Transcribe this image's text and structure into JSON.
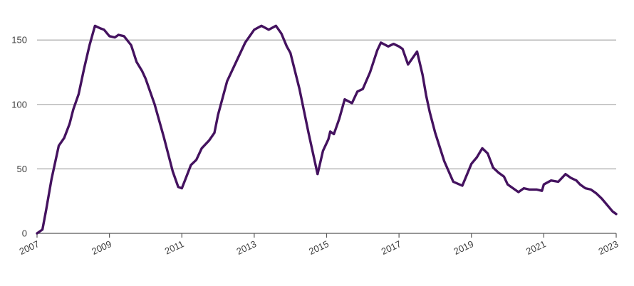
{
  "chart_data": {
    "type": "line",
    "title": "",
    "xlabel": "",
    "ylabel": "",
    "xlim": [
      2007,
      2023
    ],
    "ylim": [
      0,
      170
    ],
    "x_ticks": [
      "2007",
      "2009",
      "2011",
      "2013",
      "2015",
      "2017",
      "2019",
      "2021",
      "2023"
    ],
    "y_ticks": [
      "0",
      "50",
      "100",
      "150"
    ],
    "grid": "horizontal",
    "legend": "none",
    "line_color": "#44125f",
    "series": [
      {
        "x": [
          2007.0,
          2007.15,
          2007.25,
          2007.4,
          2007.5,
          2007.6,
          2007.75,
          2007.9,
          2008.0,
          2008.15,
          2008.3,
          2008.45,
          2008.6,
          2008.75,
          2008.85,
          2009.0,
          2009.15,
          2009.25,
          2009.4,
          2009.6,
          2009.75,
          2009.9,
          2010.0,
          2010.25,
          2010.5,
          2010.75,
          2010.9,
          2011.0,
          2011.1,
          2011.25,
          2011.4,
          2011.55,
          2011.75,
          2011.9,
          2012.0,
          2012.25,
          2012.5,
          2012.75,
          2013.0,
          2013.2,
          2013.4,
          2013.6,
          2013.75,
          2013.9,
          2014.0,
          2014.25,
          2014.5,
          2014.75,
          2014.9,
          2015.05,
          2015.1,
          2015.2,
          2015.35,
          2015.5,
          2015.7,
          2015.85,
          2016.0,
          2016.2,
          2016.4,
          2016.5,
          2016.7,
          2016.85,
          2017.0,
          2017.1,
          2017.25,
          2017.5,
          2017.65,
          2017.75,
          2017.85,
          2018.0,
          2018.25,
          2018.5,
          2018.75,
          2019.0,
          2019.15,
          2019.3,
          2019.45,
          2019.6,
          2019.75,
          2019.9,
          2020.0,
          2020.15,
          2020.3,
          2020.45,
          2020.6,
          2020.8,
          2020.95,
          2021.0,
          2021.2,
          2021.4,
          2021.6,
          2021.75,
          2021.9,
          2022.0,
          2022.15,
          2022.3,
          2022.45,
          2022.6,
          2022.75,
          2022.9,
          2023.0
        ],
        "values": [
          0,
          3,
          18,
          42,
          55,
          68,
          74,
          85,
          96,
          108,
          128,
          146,
          161,
          159,
          158,
          153,
          152,
          154,
          153,
          146,
          133,
          126,
          120,
          100,
          75,
          48,
          36,
          35,
          42,
          53,
          57,
          66,
          72,
          78,
          92,
          118,
          133,
          148,
          158,
          161,
          158,
          161,
          155,
          145,
          140,
          112,
          78,
          46,
          64,
          73,
          79,
          77,
          89,
          104,
          101,
          110,
          112,
          125,
          142,
          148,
          145,
          147,
          145,
          143,
          131,
          141,
          123,
          107,
          94,
          78,
          56,
          40,
          37,
          54,
          59,
          66,
          62,
          51,
          47,
          44,
          38,
          35,
          32,
          35,
          34,
          34,
          33,
          38,
          41,
          40,
          46,
          43,
          41,
          38,
          35,
          34,
          31,
          27,
          22,
          17,
          15
        ]
      }
    ]
  }
}
